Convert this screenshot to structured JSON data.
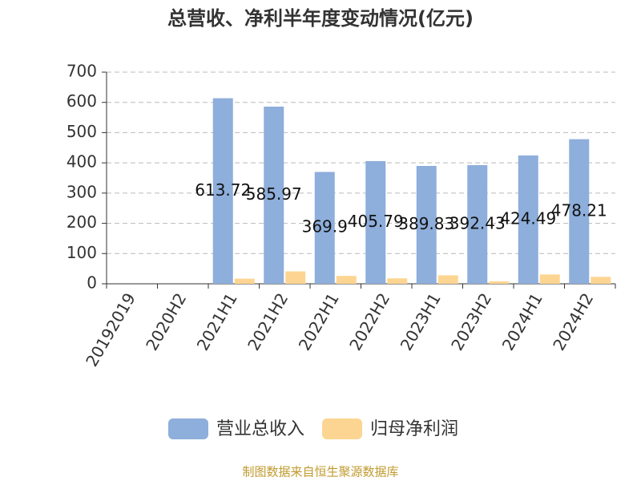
{
  "chart_data": {
    "type": "bar",
    "title": "总营收、净利半年度变动情况(亿元)",
    "categories": [
      "20192019",
      "2020H2",
      "2021H1",
      "2021H2",
      "2022H1",
      "2022H2",
      "2023H1",
      "2023H2",
      "2024H1",
      "2024H2"
    ],
    "series": [
      {
        "name": "营业总收入",
        "color": "#8eaedb",
        "values": [
          null,
          null,
          613.72,
          585.97,
          369.9,
          405.79,
          389.83,
          392.43,
          424.49,
          478.21
        ]
      },
      {
        "name": "归母净利润",
        "color": "#fdd592",
        "values": [
          null,
          null,
          17,
          41,
          26,
          18,
          28,
          8,
          31,
          23
        ]
      }
    ],
    "ylim": [
      0,
      700
    ],
    "yticks": [
      0,
      100,
      200,
      300,
      400,
      500,
      600,
      700
    ],
    "grid": true,
    "source": "制图数据来自恒生聚源数据库"
  }
}
